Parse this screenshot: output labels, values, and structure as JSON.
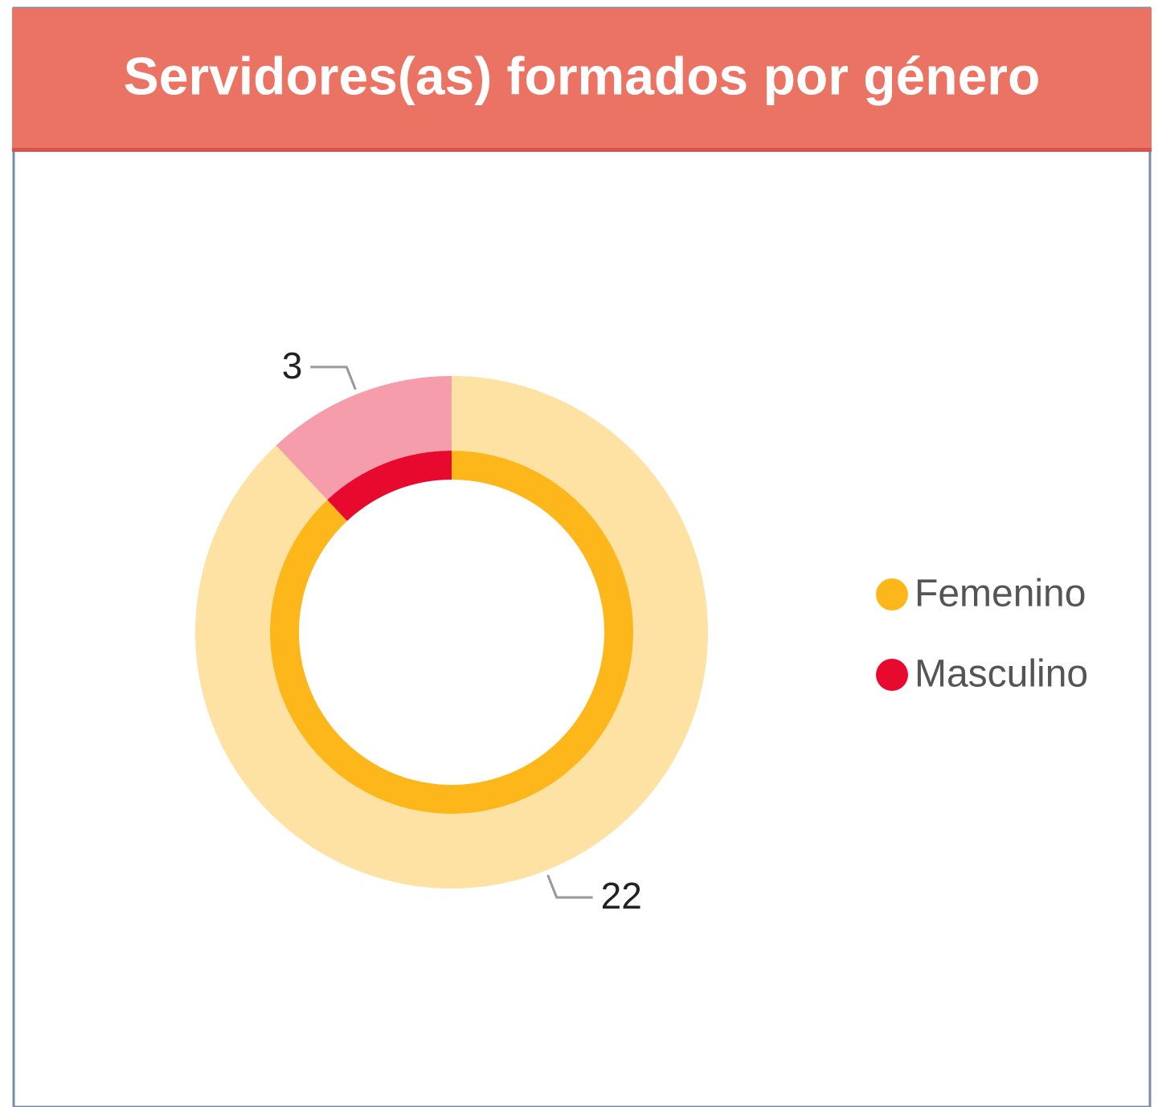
{
  "chart_data": {
    "type": "donut",
    "title": "Servidores(as) formados por género",
    "categories": [
      "Femenino",
      "Masculino"
    ],
    "values": [
      22,
      3
    ],
    "colors": [
      "#FDB71A",
      "#E8092E"
    ],
    "legend": "right"
  }
}
